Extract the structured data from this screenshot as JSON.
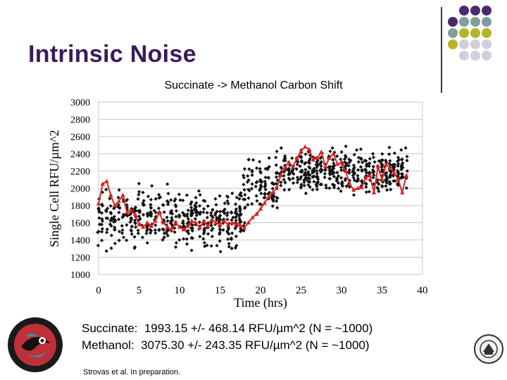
{
  "slide": {
    "title": "Intrinsic Noise",
    "stats": [
      "Succinate:  1993.15 +/- 468.14 RFU/µm^2 (N = ~1000)",
      "Methanol:  3075.30 +/- 243.35 RFU/µm^2 (N = ~1000)"
    ],
    "citation": "Strovas et al. In preparation.",
    "decor_colors": [
      "#4b2a6b",
      "#7f9ea0",
      "#b5b52a",
      "#d0d0dc"
    ]
  },
  "chart_data": {
    "type": "scatter",
    "title": "Succinate -> Methanol Carbon Shift",
    "xlabel": "Time (hrs)",
    "ylabel": "Single Cell RFU/µm^2",
    "xlim": [
      0,
      40
    ],
    "ylim": [
      1000,
      3000
    ],
    "xticks": [
      0,
      5,
      10,
      15,
      20,
      25,
      30,
      35,
      40
    ],
    "yticks": [
      1000,
      1200,
      1400,
      1600,
      1800,
      2000,
      2200,
      2400,
      2600,
      2800,
      3000
    ],
    "grid": "horizontal",
    "colors": {
      "points": "#111111",
      "mean_line": "#e02020"
    },
    "scatter_summary": [
      {
        "x_range": [
          0,
          18
        ],
        "y_center": 1650,
        "y_spread": 420,
        "n": 450
      },
      {
        "x_range": [
          18,
          22
        ],
        "y_center": 2000,
        "y_spread": 420,
        "n": 90
      },
      {
        "x_range": [
          22,
          38
        ],
        "y_center": 2200,
        "y_spread": 300,
        "n": 430
      }
    ],
    "mean_series": {
      "x": [
        0,
        0.5,
        1,
        1.5,
        2,
        2.5,
        3,
        3.5,
        4,
        4.5,
        5,
        5.5,
        6,
        6.5,
        7,
        7.5,
        8,
        8.5,
        9,
        9.5,
        10,
        10.5,
        11,
        11.5,
        12,
        12.5,
        13,
        13.5,
        14,
        14.5,
        15,
        15.5,
        16,
        16.5,
        17,
        17.5,
        18,
        18.5,
        19,
        19.5,
        20,
        20.5,
        21,
        21.5,
        22,
        22.5,
        23,
        23.5,
        24,
        24.5,
        25,
        25.5,
        26,
        26.5,
        27,
        27.5,
        28,
        28.5,
        29,
        29.5,
        30,
        30.5,
        31,
        31.5,
        32,
        32.5,
        33,
        33.5,
        34,
        34.5,
        35,
        35.5,
        36,
        36.5,
        37,
        37.5,
        38
      ],
      "y": [
        1820,
        2050,
        2080,
        1920,
        1800,
        1850,
        1920,
        1720,
        1740,
        1700,
        1580,
        1550,
        1600,
        1560,
        1620,
        1720,
        1600,
        1550,
        1520,
        1600,
        1550,
        1520,
        1560,
        1620,
        1600,
        1540,
        1620,
        1560,
        1640,
        1600,
        1580,
        1620,
        1580,
        1600,
        1580,
        1570,
        1540,
        1600,
        1660,
        1700,
        1760,
        1830,
        1900,
        1950,
        2000,
        2150,
        2240,
        2300,
        2250,
        2350,
        2430,
        2480,
        2450,
        2330,
        2350,
        2420,
        2250,
        2350,
        2400,
        2280,
        2300,
        2200,
        2050,
        1980,
        2000,
        2010,
        2120,
        2150,
        1950,
        2250,
        2100,
        2280,
        2230,
        2180,
        2100,
        1950,
        2150
      ]
    }
  }
}
